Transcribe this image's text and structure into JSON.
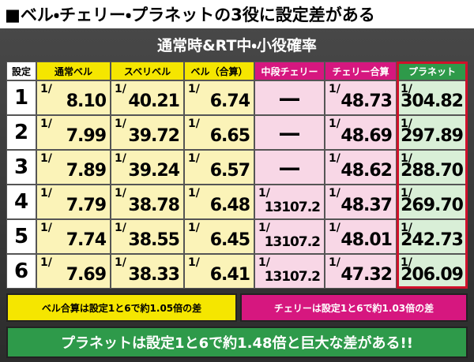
{
  "header": {
    "title": "■ベル・チェリー・プラネットの3役に設定差がある"
  },
  "table": {
    "title": "通常時&RT中・小役確率",
    "prefix": "1/",
    "columns": [
      "設定",
      "通常ベル",
      "スベリベル",
      "ベル（合算）",
      "中段チェリー",
      "チェリー合算",
      "プラネット"
    ],
    "rows": [
      [
        "1",
        "8.10",
        "40.21",
        "6.74",
        "—",
        "48.73",
        "304.82"
      ],
      [
        "2",
        "7.99",
        "39.72",
        "6.65",
        "—",
        "48.69",
        "297.89"
      ],
      [
        "3",
        "7.89",
        "39.24",
        "6.57",
        "—",
        "48.62",
        "288.70"
      ],
      [
        "4",
        "7.79",
        "38.78",
        "6.48",
        "13107.2",
        "48.37",
        "269.70"
      ],
      [
        "5",
        "7.74",
        "38.55",
        "6.45",
        "13107.2",
        "48.01",
        "242.73"
      ],
      [
        "6",
        "7.69",
        "38.33",
        "6.41",
        "13107.2",
        "47.32",
        "206.09"
      ]
    ]
  },
  "notes": {
    "bell": "ベル合算は設定1と6で約1.05倍の差",
    "cherry": "チェリーは設定1と6で約1.03倍の差",
    "planet": "プラネットは設定1と6で約1.48倍と巨大な差がある!!"
  }
}
